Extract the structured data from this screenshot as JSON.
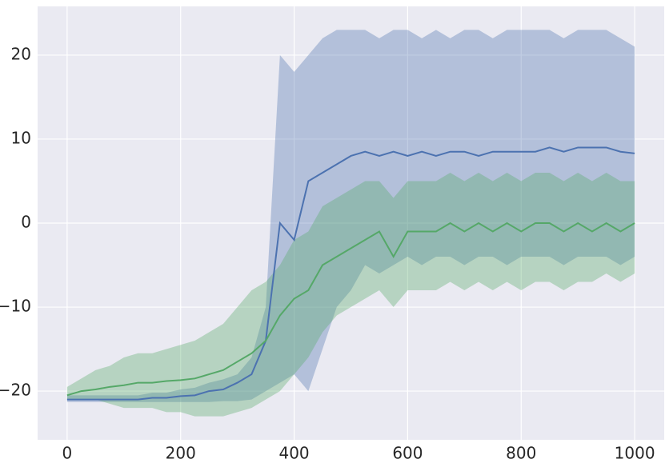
{
  "chart_data": {
    "type": "line",
    "x": [
      0,
      25,
      50,
      75,
      100,
      125,
      150,
      175,
      200,
      225,
      250,
      275,
      300,
      325,
      350,
      375,
      400,
      425,
      450,
      475,
      500,
      525,
      550,
      575,
      600,
      625,
      650,
      675,
      700,
      725,
      750,
      775,
      800,
      825,
      850,
      875,
      900,
      925,
      950,
      975,
      1000
    ],
    "series": [
      {
        "color": "#4c72b0",
        "values": [
          -21,
          -21,
          -21,
          -21,
          -21,
          -21,
          -20.8,
          -20.8,
          -20.6,
          -20.5,
          -20,
          -19.8,
          -19,
          -18,
          -14,
          0,
          -2,
          5,
          6,
          7,
          8,
          8.5,
          8,
          8.5,
          8,
          8.5,
          8,
          8.5,
          8.5,
          8,
          8.5,
          8.5,
          8.5,
          8.5,
          9,
          8.5,
          9,
          9,
          9,
          8.5,
          8.3
        ],
        "lower": [
          -21.3,
          -21.3,
          -21.3,
          -21.3,
          -21.3,
          -21.3,
          -21.3,
          -21.3,
          -21.3,
          -21.3,
          -21.3,
          -21.2,
          -21.2,
          -21,
          -20,
          -19,
          -18,
          -20,
          -15,
          -10,
          -8,
          -5,
          -6,
          -5,
          -4,
          -5,
          -4,
          -4,
          -5,
          -4,
          -4,
          -5,
          -4,
          -4,
          -4,
          -5,
          -4,
          -4,
          -4,
          -5,
          -4
        ],
        "upper": [
          -20.5,
          -20.5,
          -20.5,
          -20.5,
          -20.5,
          -20.5,
          -20.2,
          -20.2,
          -19.8,
          -19.6,
          -19,
          -18.6,
          -18,
          -16,
          -10,
          20,
          18,
          20,
          22,
          23,
          23,
          23,
          22,
          23,
          23,
          22,
          23,
          22,
          23,
          23,
          22,
          23,
          23,
          23,
          23,
          22,
          23,
          23,
          23,
          22,
          21
        ]
      },
      {
        "color": "#55a868",
        "values": [
          -20.5,
          -20,
          -19.8,
          -19.5,
          -19.3,
          -19,
          -19,
          -18.8,
          -18.7,
          -18.5,
          -18,
          -17.5,
          -16.5,
          -15.5,
          -14,
          -11,
          -9,
          -8,
          -5,
          -4,
          -3,
          -2,
          -1,
          -4,
          -1,
          -1,
          -1,
          0,
          -1,
          0,
          -1,
          0,
          -1,
          0,
          0,
          -1,
          0,
          -1,
          0,
          -1,
          0
        ],
        "lower": [
          -21,
          -21,
          -21,
          -21.5,
          -22,
          -22,
          -22,
          -22.5,
          -22.5,
          -23,
          -23,
          -23,
          -22.5,
          -22,
          -21,
          -20,
          -18,
          -16,
          -13,
          -11,
          -10,
          -9,
          -8,
          -10,
          -8,
          -8,
          -8,
          -7,
          -8,
          -7,
          -8,
          -7,
          -8,
          -7,
          -7,
          -8,
          -7,
          -7,
          -6,
          -7,
          -6
        ],
        "upper": [
          -19.5,
          -18.5,
          -17.5,
          -17,
          -16,
          -15.5,
          -15.5,
          -15,
          -14.5,
          -14,
          -13,
          -12,
          -10,
          -8,
          -7,
          -5,
          -2,
          -1,
          2,
          3,
          4,
          5,
          5,
          3,
          5,
          5,
          5,
          6,
          5,
          6,
          5,
          6,
          5,
          6,
          6,
          5,
          6,
          5,
          6,
          5,
          5
        ]
      }
    ],
    "xlim": [
      -52,
      1052
    ],
    "ylim": [
      -25.8,
      25.8
    ],
    "xticks": [
      0,
      200,
      400,
      600,
      800,
      1000
    ],
    "yticks": [
      {
        "value": -20,
        "label": "−20"
      },
      {
        "value": -10,
        "label": "−10"
      },
      0,
      10,
      20
    ],
    "grid": true,
    "background": "#eaeaf2"
  }
}
